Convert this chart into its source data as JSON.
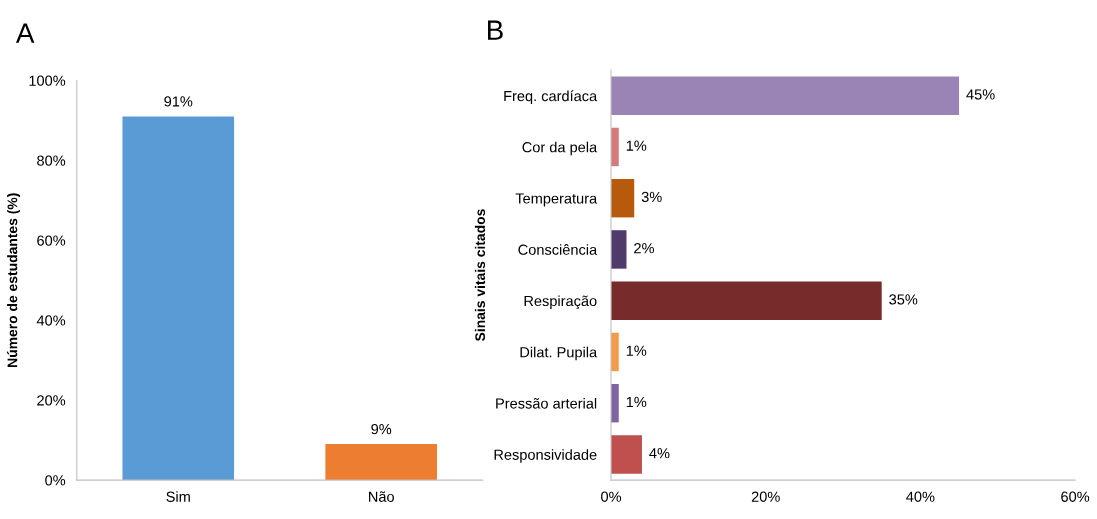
{
  "chart_data": [
    {
      "type": "bar",
      "title": "A",
      "ylabel": "Número de estudantes (%)",
      "categories": [
        "Sim",
        "Não"
      ],
      "values": [
        91,
        9
      ],
      "colors": [
        "#5b9bd5",
        "#ed7d31"
      ],
      "value_labels": [
        "91%",
        "9%"
      ],
      "ylim": [
        0,
        100
      ],
      "yticks": [
        {
          "value": 0,
          "label": "0%"
        },
        {
          "value": 20,
          "label": "20%"
        },
        {
          "value": 40,
          "label": "40%"
        },
        {
          "value": 60,
          "label": "60%"
        },
        {
          "value": 80,
          "label": "80%"
        },
        {
          "value": 100,
          "label": "100%"
        }
      ],
      "grid": false,
      "legend": false
    },
    {
      "type": "bar",
      "orientation": "horizontal",
      "title": "B",
      "ylabel": "Sinais vitais citados",
      "categories": [
        "Freq. cardíaca",
        "Cor da pela",
        "Temperatura",
        "Consciência",
        "Respiração",
        "Dilat. Pupila",
        "Pressão arterial",
        "Responsividade"
      ],
      "values": [
        45,
        1,
        3,
        2,
        35,
        1,
        1,
        4
      ],
      "colors": [
        "#9a84b5",
        "#d47a7a",
        "#b85a0c",
        "#4f3b6b",
        "#772b2b",
        "#f59a4a",
        "#8064a2",
        "#c0504d"
      ],
      "value_labels": [
        "45%",
        "1%",
        "3%",
        "2%",
        "35%",
        "1%",
        "1%",
        "4%"
      ],
      "xlim": [
        0,
        60
      ],
      "xticks": [
        {
          "value": 0,
          "label": "0%"
        },
        {
          "value": 20,
          "label": "20%"
        },
        {
          "value": 40,
          "label": "40%"
        },
        {
          "value": 60,
          "label": "60%"
        }
      ],
      "grid": false,
      "legend": false
    }
  ]
}
